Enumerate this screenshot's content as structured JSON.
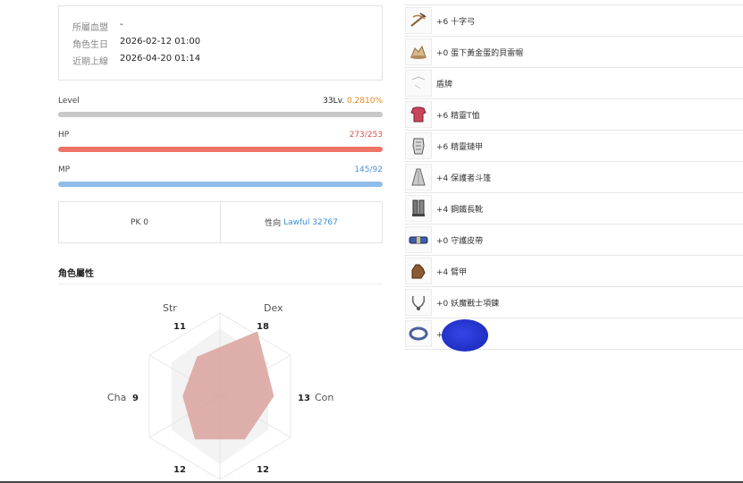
{
  "info": {
    "rows": [
      {
        "label": "所屬血盟",
        "value": "-"
      },
      {
        "label": "角色生日",
        "value": "2026-02-12 01:00"
      },
      {
        "label": "近期上線",
        "value": "2026-04-20 01:14"
      }
    ]
  },
  "stats": {
    "level": {
      "label": "Level",
      "value": "33Lv.",
      "pct": "0.2810%",
      "fill": 0.0028
    },
    "hp": {
      "label": "HP",
      "value": "273/253",
      "fill": 1.0
    },
    "mp": {
      "label": "MP",
      "value": "145/92",
      "fill": 1.0
    }
  },
  "pk": {
    "pk_text": "PK 0",
    "alignment_label": "性向",
    "alignment_value": "Lawful 32767"
  },
  "attributes": {
    "title": "角色屬性",
    "axes": [
      {
        "name": "Str",
        "value": "11"
      },
      {
        "name": "Dex",
        "value": "18"
      },
      {
        "name": "Con",
        "value": "13"
      },
      {
        "name": "",
        "value": "12"
      },
      {
        "name": "",
        "value": "12"
      },
      {
        "name": "Cha",
        "value": "9"
      }
    ]
  },
  "equipment": [
    {
      "icon": "crossbow-icon",
      "name": "+6 十字弓"
    },
    {
      "icon": "hat-icon",
      "name": "+0 蛋下黃金蛋的貝雷帽"
    },
    {
      "icon": "shield-icon",
      "name": "盾牌"
    },
    {
      "icon": "tshirt-icon",
      "name": "+6 精靈T恤"
    },
    {
      "icon": "armor-icon",
      "name": "+6 精靈鏈甲"
    },
    {
      "icon": "cloak-icon",
      "name": "+4 保護者斗篷"
    },
    {
      "icon": "boots-icon",
      "name": "+4 鋼鐵長靴"
    },
    {
      "icon": "belt-icon",
      "name": "+0 守護皮帶"
    },
    {
      "icon": "gloves-icon",
      "name": "+4 臂甲"
    },
    {
      "icon": "necklace-icon",
      "name": "+0 妖魔戰士項鍊"
    },
    {
      "icon": "ring-icon",
      "name": "+0 守護戒指"
    }
  ],
  "colors": {
    "level_bar": "#c9c9c9",
    "hp_bar": "#ee7466",
    "mp_bar": "#8fbdea",
    "hp_text": "#d9534f",
    "mp_text": "#4a90d9",
    "level_pct": "#e08a1e",
    "radar_fill": "#d9a29c"
  }
}
